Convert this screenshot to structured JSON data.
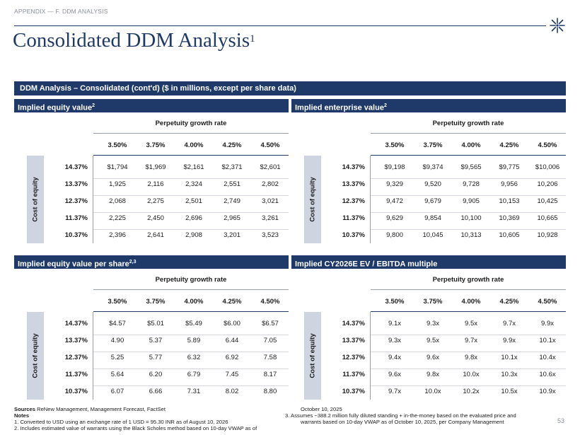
{
  "header": {
    "section": "APPENDIX — F. DDM ANALYSIS",
    "title": "Consolidated DDM Analysis",
    "title_sup": "1"
  },
  "banner": "DDM Analysis – Consolidated (cont'd) ($ in millions, except per share data)",
  "common": {
    "pgr_label": "Perpetuity growth rate",
    "side_label": "Cost of equity",
    "growth_rates": [
      "3.50%",
      "3.75%",
      "4.00%",
      "4.25%",
      "4.50%"
    ],
    "cost_of_equity": [
      "14.37%",
      "13.37%",
      "12.37%",
      "11.37%",
      "10.37%"
    ]
  },
  "tables": [
    {
      "title": "Implied equity value",
      "title_sup": "2",
      "rows": [
        [
          "$1,794",
          "$1,969",
          "$2,161",
          "$2,371",
          "$2,601"
        ],
        [
          "1,925",
          "2,116",
          "2,324",
          "2,551",
          "2,802"
        ],
        [
          "2,068",
          "2,275",
          "2,501",
          "2,749",
          "3,021"
        ],
        [
          "2,225",
          "2,450",
          "2,696",
          "2,965",
          "3,261"
        ],
        [
          "2,396",
          "2,641",
          "2,908",
          "3,201",
          "3,523"
        ]
      ]
    },
    {
      "title": "Implied enterprise value",
      "title_sup": "2",
      "rows": [
        [
          "$9,198",
          "$9,374",
          "$9,565",
          "$9,775",
          "$10,006"
        ],
        [
          "9,329",
          "9,520",
          "9,728",
          "9,956",
          "10,206"
        ],
        [
          "9,472",
          "9,679",
          "9,905",
          "10,153",
          "10,425"
        ],
        [
          "9,629",
          "9,854",
          "10,100",
          "10,369",
          "10,665"
        ],
        [
          "9,800",
          "10,045",
          "10,313",
          "10,605",
          "10,928"
        ]
      ]
    },
    {
      "title": "Implied equity value per share",
      "title_sup": "2,3",
      "rows": [
        [
          "$4.57",
          "$5.01",
          "$5.49",
          "$6.00",
          "$6.57"
        ],
        [
          "4.90",
          "5.37",
          "5.89",
          "6.44",
          "7.05"
        ],
        [
          "5.25",
          "5.77",
          "6.32",
          "6.92",
          "7.58"
        ],
        [
          "5.64",
          "6.20",
          "6.79",
          "7.45",
          "8.17"
        ],
        [
          "6.07",
          "6.66",
          "7.31",
          "8.02",
          "8.80"
        ]
      ]
    },
    {
      "title": "Implied CY2026E EV / EBITDA multiple",
      "title_sup": "",
      "rows": [
        [
          "9.1x",
          "9.3x",
          "9.5x",
          "9.7x",
          "9.9x"
        ],
        [
          "9.3x",
          "9.5x",
          "9.7x",
          "9.9x",
          "10.1x"
        ],
        [
          "9.4x",
          "9.6x",
          "9.8x",
          "10.1x",
          "10.4x"
        ],
        [
          "9.6x",
          "9.8x",
          "10.0x",
          "10.3x",
          "10.6x"
        ],
        [
          "9.7x",
          "10.0x",
          "10.2x",
          "10.5x",
          "10.9x"
        ]
      ]
    }
  ],
  "footer": {
    "sources_label": "Sources",
    "sources_text": " ReNew Management, Management Forecast, FactSet",
    "notes_label": "Notes",
    "note1": "1.    Converted to USD using an exchange rate of 1 USD = 95.30 INR as of August 10, 2026",
    "note2": "2.    Includes estimated value of warrants using the Black Scholes method based on 10-day VWAP as of",
    "note2_cont": "October 10, 2025",
    "note3": "3.    Assumes ~388.2 million fully diluted standing + in-the-money  based on the evaluated price and",
    "note3_cont": "warrants based on 10-day VWAP as of October 10, 2025, per Company Management",
    "page": "53"
  }
}
